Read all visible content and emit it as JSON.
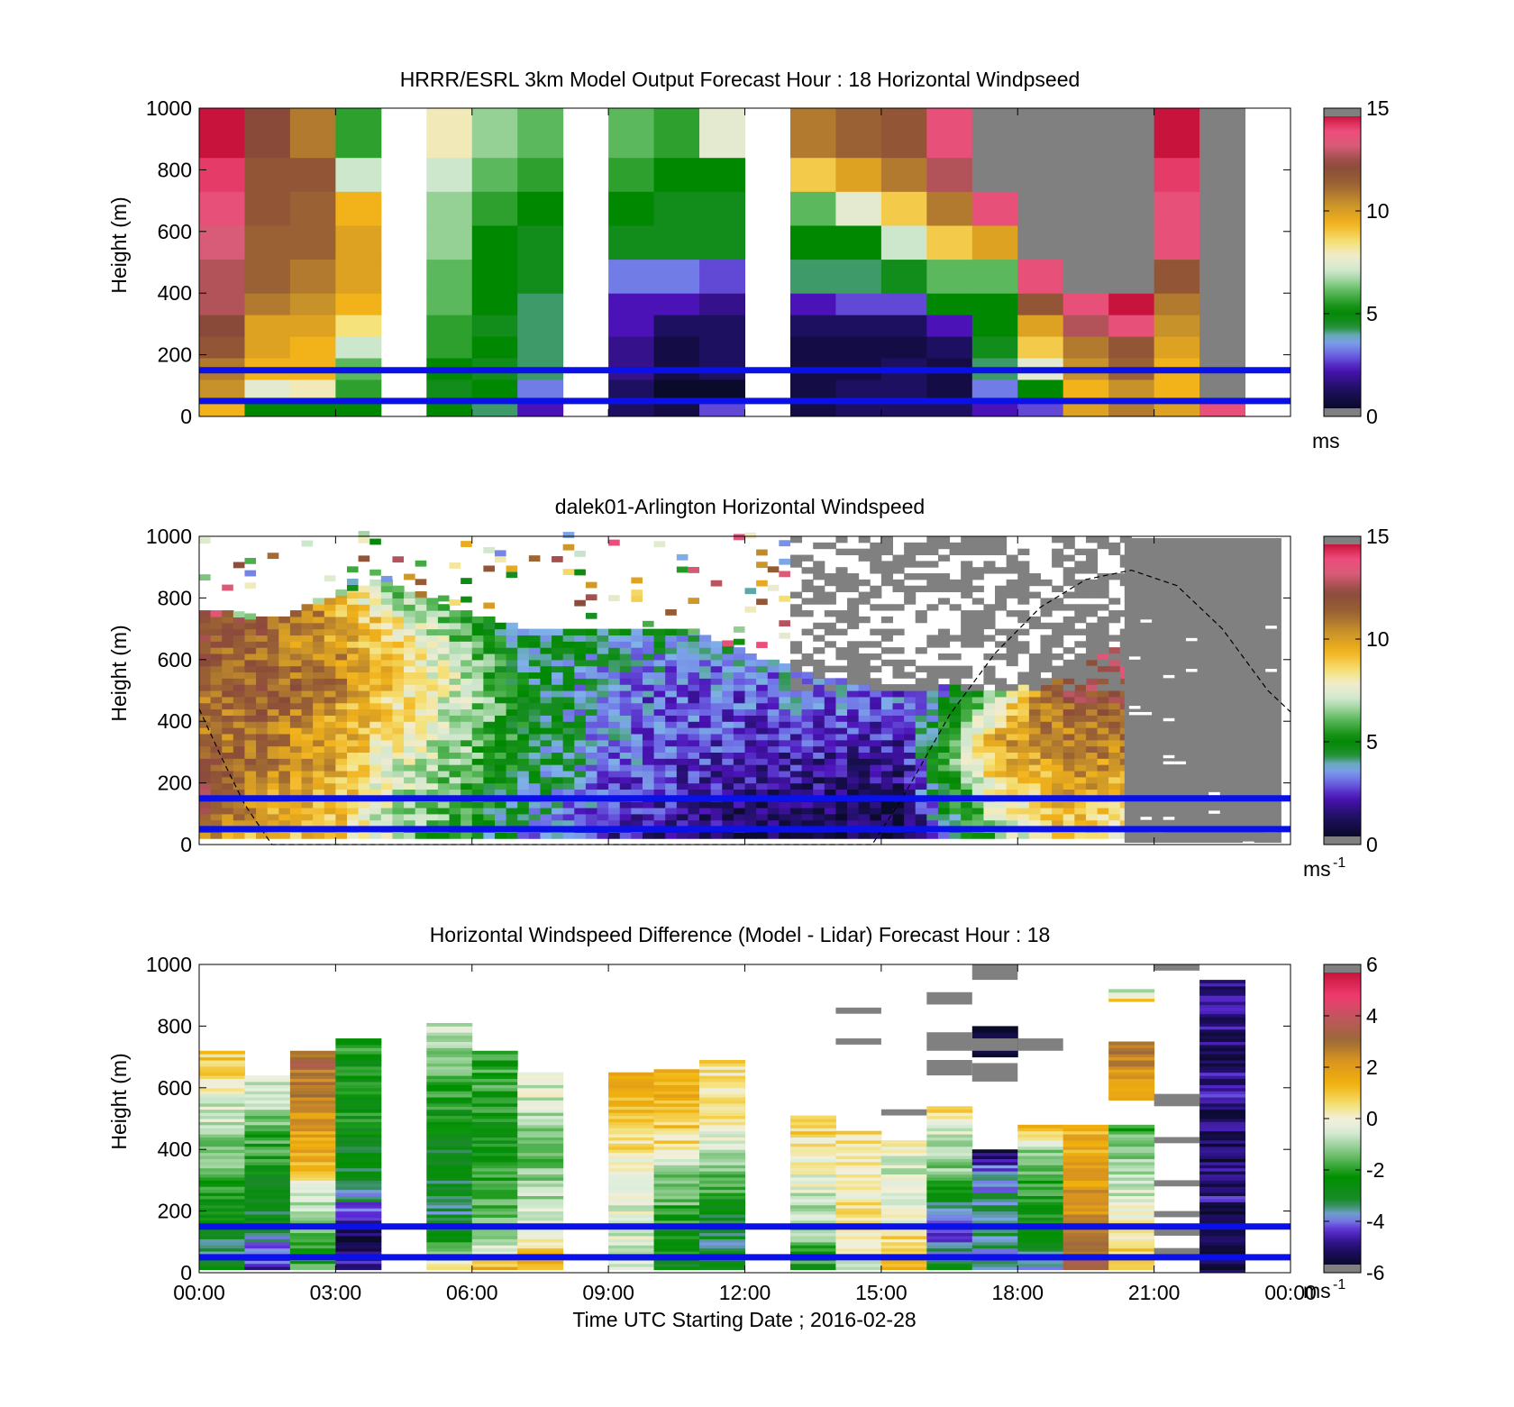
{
  "figure": {
    "xlabel": "Time UTC  Starting Date ; 2016-02-28",
    "xticks": [
      "00:00",
      "03:00",
      "06:00",
      "09:00",
      "12:00",
      "15:00",
      "18:00",
      "21:00",
      "00:00"
    ]
  },
  "chart_data": [
    {
      "type": "heatmap",
      "title": "HRRR/ESRL 3km Model Output   Forecast Hour : 18 Horizontal Windpseed",
      "ylabel": "Height (m)",
      "ylim": [
        0,
        1000
      ],
      "yticks": [
        "0",
        "200",
        "400",
        "600",
        "800",
        "1000"
      ],
      "xlim_hours": [
        0,
        24
      ],
      "colorbar": {
        "min": 0,
        "max": 15,
        "ticks": [
          "0",
          "5",
          "10",
          "15"
        ],
        "unit": "ms",
        "unit_sup": ""
      },
      "reference_lines_m": [
        50,
        150
      ],
      "columns": [
        {
          "t": 0.5,
          "v": [
            9.5,
            10.5,
            11,
            12,
            12.5,
            13,
            13,
            13.5,
            14,
            14.5,
            15
          ]
        },
        {
          "t": 1.5,
          "v": [
            5,
            7.5,
            9.5,
            10,
            10,
            11,
            11.5,
            11.5,
            12,
            12,
            12.5
          ]
        },
        {
          "t": 2.5,
          "v": [
            5,
            8,
            9.5,
            9.5,
            10,
            10.5,
            11,
            11.5,
            11.5,
            12,
            11
          ]
        },
        {
          "t": 3.5,
          "v": [
            5,
            5.5,
            6,
            7,
            8.5,
            9.5,
            10,
            10,
            9.5,
            7,
            5.5
          ]
        },
        {
          "t": 5.5,
          "v": [
            5,
            4.5,
            5,
            5.5,
            5.5,
            6,
            6,
            6.5,
            6.5,
            7,
            8
          ]
        },
        {
          "t": 6.5,
          "v": [
            4,
            5,
            4.5,
            5,
            4.5,
            5,
            5,
            5,
            5.5,
            6,
            6.5
          ]
        },
        {
          "t": 7.5,
          "v": [
            2,
            3,
            4,
            4,
            4,
            4,
            4.5,
            4.5,
            5,
            5.5,
            6
          ]
        },
        {
          "t": 9.5,
          "v": [
            1,
            1,
            1.5,
            1.5,
            2,
            2,
            3,
            4.5,
            5,
            5.5,
            6
          ]
        },
        {
          "t": 10.5,
          "v": [
            0.5,
            0,
            0.5,
            0.5,
            1,
            2,
            3,
            4.5,
            4.5,
            5,
            5.5
          ]
        },
        {
          "t": 11.5,
          "v": [
            2.5,
            0,
            1,
            1,
            1,
            1.5,
            2.5,
            4.5,
            4.5,
            5,
            7.5
          ]
        },
        {
          "t": 13.5,
          "v": [
            0.5,
            0.5,
            0.5,
            0.5,
            1,
            2,
            4,
            5,
            6,
            9,
            11
          ]
        },
        {
          "t": 14.5,
          "v": [
            1,
            1,
            0.5,
            0.5,
            1,
            2.5,
            4,
            5,
            7.5,
            10,
            11.5
          ]
        },
        {
          "t": 15.5,
          "v": [
            1,
            1,
            1,
            0.5,
            1,
            2.5,
            4.5,
            7,
            9,
            11,
            12
          ]
        },
        {
          "t": 16.5,
          "v": [
            1,
            0.5,
            0.5,
            1,
            2,
            5,
            6,
            9,
            11,
            13,
            14
          ]
        },
        {
          "t": 17.5,
          "v": [
            2,
            3,
            4,
            4.5,
            5,
            5,
            6,
            10,
            14,
            null,
            null
          ]
        },
        {
          "t": 18.5,
          "v": [
            2.5,
            5,
            7.5,
            9,
            10,
            12,
            14,
            null,
            null,
            null,
            null
          ]
        },
        {
          "t": 19.5,
          "v": [
            10,
            9.5,
            10.5,
            11,
            13,
            14,
            null,
            null,
            null,
            null,
            null
          ]
        },
        {
          "t": 20.5,
          "v": [
            11,
            10.5,
            11.5,
            12,
            14,
            15,
            null,
            null,
            null,
            null,
            null
          ]
        },
        {
          "t": 21.5,
          "v": [
            10,
            9.5,
            9.5,
            10,
            10.5,
            11,
            12,
            14,
            14,
            14.5,
            15
          ]
        },
        {
          "t": 22.5,
          "v": [
            14,
            null,
            null,
            null,
            null,
            null,
            null,
            null,
            null,
            null,
            null
          ]
        }
      ]
    },
    {
      "type": "heatmap",
      "title": "dalek01-Arlington  Horizontal Windspeed",
      "ylabel": "Height (m)",
      "ylim": [
        0,
        1000
      ],
      "yticks": [
        "0",
        "200",
        "400",
        "600",
        "800",
        "1000"
      ],
      "xlim_hours": [
        0,
        24
      ],
      "colorbar": {
        "min": 0,
        "max": 15,
        "ticks": [
          "0",
          "5",
          "10",
          "15"
        ],
        "unit": "ms",
        "unit_sup": "-1"
      },
      "reference_lines_m": [
        50,
        150
      ],
      "profile_keyframes": [
        {
          "t": 0,
          "top": 760,
          "v": [
            11,
            13,
            12,
            11,
            11,
            12,
            13
          ]
        },
        {
          "t": 1.5,
          "top": 720,
          "v": [
            9,
            10,
            11,
            11,
            12,
            11,
            12
          ]
        },
        {
          "t": 3,
          "top": 800,
          "v": [
            9,
            9.5,
            10,
            10,
            11,
            10,
            10
          ]
        },
        {
          "t": 4,
          "top": 860,
          "v": [
            7,
            7.5,
            8,
            9,
            9.5,
            9,
            6
          ]
        },
        {
          "t": 5.5,
          "top": 760,
          "v": [
            5.5,
            6,
            6.5,
            7,
            7.5,
            7,
            5.5
          ]
        },
        {
          "t": 7,
          "top": 700,
          "v": [
            3.5,
            4,
            4.5,
            5,
            5,
            4.5,
            4
          ]
        },
        {
          "t": 9,
          "top": 690,
          "v": [
            2,
            2.5,
            3,
            3,
            3,
            3.5,
            4.5
          ]
        },
        {
          "t": 11,
          "top": 680,
          "v": [
            1.2,
            1.5,
            2,
            2.5,
            2.5,
            3,
            4
          ]
        },
        {
          "t": 13,
          "top": 560,
          "v": [
            0.6,
            0.8,
            1.5,
            2,
            2.5,
            3,
            3
          ]
        },
        {
          "t": 15.5,
          "top": 500,
          "v": [
            0.4,
            0.6,
            1,
            1.5,
            2,
            2.5,
            3
          ]
        },
        {
          "t": 16.4,
          "top": 520,
          "v": [
            3,
            4,
            5,
            5.5,
            5,
            4.5,
            3
          ]
        },
        {
          "t": 17.5,
          "top": 480,
          "v": [
            6,
            7,
            8,
            9,
            10,
            8,
            6
          ]
        },
        {
          "t": 19,
          "top": 560,
          "v": [
            8.5,
            9.5,
            10,
            10.5,
            11,
            12,
            13
          ]
        },
        {
          "t": 20.3,
          "top": 640,
          "v": [
            8,
            9,
            10,
            11,
            12,
            13,
            14
          ]
        }
      ],
      "lidar_end_hour": 20.35,
      "noise_region": {
        "t0": 13,
        "t1": 20.35,
        "bottom": 500,
        "top": 1000,
        "fraction_gray": 0.55
      },
      "gray_region": {
        "t0": 20.35,
        "t1": 24
      },
      "dashed_curve": [
        [
          0,
          440
        ],
        [
          0.5,
          280
        ],
        [
          1,
          130
        ],
        [
          1.6,
          0
        ],
        [
          14.8,
          0
        ],
        [
          15.5,
          160
        ],
        [
          16.5,
          420
        ],
        [
          17.5,
          620
        ],
        [
          18.5,
          770
        ],
        [
          19.5,
          860
        ],
        [
          20.5,
          890
        ],
        [
          21.5,
          840
        ],
        [
          22.5,
          700
        ],
        [
          23.5,
          500
        ],
        [
          24,
          430
        ]
      ]
    },
    {
      "type": "heatmap",
      "title": "Horizontal Windspeed Difference (Model - Lidar) Forecast Hour : 18",
      "ylabel": "Height (m)",
      "ylim": [
        0,
        1000
      ],
      "yticks": [
        "0",
        "200",
        "400",
        "600",
        "800",
        "1000"
      ],
      "xlim_hours": [
        0,
        24
      ],
      "colorbar": {
        "min": -6,
        "max": 6,
        "ticks": [
          "-6",
          "-4",
          "-2",
          "0",
          "2",
          "4",
          "6"
        ],
        "unit": "ms",
        "unit_sup": "-1"
      },
      "reference_lines_m": [
        50,
        150
      ],
      "columns": [
        {
          "t": 0.5,
          "top": 720,
          "v": [
            -3,
            -3.5,
            -2.5,
            -2,
            -1.5,
            -1,
            -0.5,
            0.5,
            1
          ]
        },
        {
          "t": 1.5,
          "top": 640,
          "v": [
            -5,
            -4,
            -3,
            -3,
            -2.5,
            -2,
            -1.5,
            -1,
            0
          ]
        },
        {
          "t": 2.5,
          "top": 720,
          "v": [
            -2,
            -1.5,
            -1,
            0,
            1.5,
            2,
            2.5,
            3,
            3.5
          ]
        },
        {
          "t": 3.5,
          "top": 760,
          "v": [
            -5,
            -5.5,
            -4.5,
            -3,
            -3,
            -2.5,
            -2.5,
            -2.5,
            -2
          ]
        },
        {
          "t": 5.5,
          "top": 810,
          "v": [
            0.5,
            -3,
            -3.5,
            -3,
            -3,
            -2.5,
            -2,
            -1,
            -0.5
          ]
        },
        {
          "t": 6.5,
          "top": 720,
          "v": [
            1.5,
            -1,
            -1.5,
            -2,
            -2.5,
            -2.5,
            -2,
            -2,
            -2
          ]
        },
        {
          "t": 7.5,
          "top": 650,
          "v": [
            1.5,
            0.5,
            -0.5,
            -1,
            -1.5,
            -1.5,
            -1,
            -0.5,
            -0.5
          ]
        },
        {
          "t": 9.5,
          "top": 650,
          "v": [
            -1,
            -0.5,
            -0.5,
            -0.5,
            0,
            0.5,
            1,
            1.5,
            1.5
          ]
        },
        {
          "t": 10.5,
          "top": 660,
          "v": [
            -3,
            -2.5,
            -2,
            -1.5,
            -1,
            0.5,
            1,
            1.5,
            1.5
          ]
        },
        {
          "t": 11.5,
          "top": 690,
          "v": [
            -3,
            -3.5,
            -3,
            -2,
            -1,
            -0.5,
            0.5,
            0.5,
            0.5
          ]
        },
        {
          "t": 13.5,
          "top": 510,
          "v": [
            -2.5,
            -1.5,
            -1,
            -0.5,
            0,
            0.5,
            1
          ]
        },
        {
          "t": 14.5,
          "top": 460,
          "v": [
            -0.5,
            0.5,
            0.5,
            0,
            0.5,
            0.5
          ]
        },
        {
          "t": 15.5,
          "top": 430,
          "v": [
            1.5,
            0.5,
            -0.5,
            -0.5,
            0
          ]
        },
        {
          "t": 16.5,
          "top": 540,
          "v": [
            -3,
            -4.5,
            -4,
            -2,
            -1,
            -0.5,
            1
          ]
        },
        {
          "t": 17.5,
          "top": 400,
          "v": [
            -4,
            -3.5,
            -3.5,
            -4,
            -5.5
          ]
        },
        {
          "t": 18.5,
          "top": 480,
          "v": [
            -3.5,
            -3,
            -2.5,
            -2,
            -1.5,
            1.5
          ]
        },
        {
          "t": 19.5,
          "top": 480,
          "v": [
            4,
            3,
            2.5,
            2,
            1.5,
            1.5
          ]
        },
        {
          "t": 20.5,
          "top": 480,
          "v": [
            1.5,
            0.5,
            0,
            -0.5,
            -1,
            -1.5,
            -2
          ]
        }
      ],
      "upper_blocks": [
        {
          "t": 20.5,
          "bottom": 560,
          "top": 750,
          "v": [
            1.5,
            2,
            2.5,
            3,
            2.5
          ]
        },
        {
          "t": 20.5,
          "bottom": 880,
          "top": 920,
          "v": [
            1,
            -2.5
          ]
        },
        {
          "t": 22.5,
          "bottom": 0,
          "top": 950,
          "v": [
            -5.5,
            -6,
            -5,
            -5.5,
            -5.5,
            -5,
            -5.5,
            -5,
            -5.5
          ]
        },
        {
          "t": 17.5,
          "bottom": 700,
          "top": 800,
          "v": [
            -5.5,
            null,
            -6
          ]
        }
      ],
      "missing_cells": [
        {
          "t": 14.5,
          "bottom": 740,
          "top": 760
        },
        {
          "t": 14.5,
          "bottom": 840,
          "top": 860
        },
        {
          "t": 15.5,
          "bottom": 510,
          "top": 530
        },
        {
          "t": 16.5,
          "bottom": 870,
          "top": 910
        },
        {
          "t": 16.5,
          "bottom": 720,
          "top": 780
        },
        {
          "t": 16.5,
          "bottom": 640,
          "top": 690
        },
        {
          "t": 17.5,
          "bottom": 950,
          "top": 1000
        },
        {
          "t": 17.5,
          "bottom": 620,
          "top": 680
        },
        {
          "t": 17.5,
          "bottom": 720,
          "top": 760
        },
        {
          "t": 18.5,
          "bottom": 720,
          "top": 760
        },
        {
          "t": 21.5,
          "bottom": 540,
          "top": 580
        },
        {
          "t": 21.5,
          "bottom": 420,
          "top": 440
        },
        {
          "t": 21.5,
          "bottom": 280,
          "top": 300
        },
        {
          "t": 21.5,
          "bottom": 180,
          "top": 200
        },
        {
          "t": 21.5,
          "bottom": 120,
          "top": 140
        },
        {
          "t": 21.5,
          "bottom": 50,
          "top": 80
        },
        {
          "t": 21.5,
          "bottom": 980,
          "top": 1000
        }
      ]
    }
  ]
}
